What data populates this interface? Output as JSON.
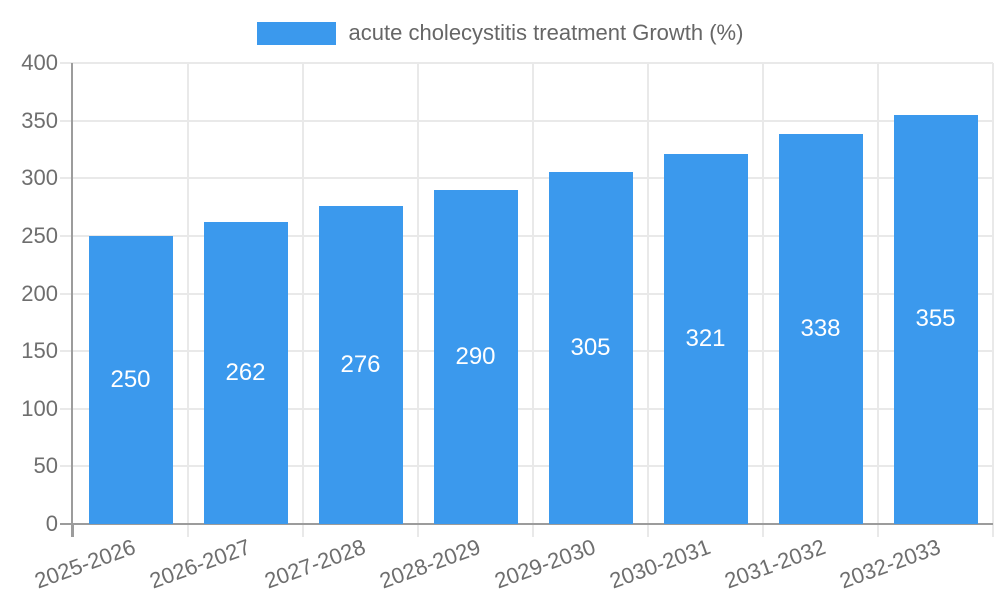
{
  "legend": {
    "label": "acute cholecystitis treatment Growth (%)"
  },
  "chart_data": {
    "type": "bar",
    "title": "",
    "series_name": "acute cholecystitis treatment Growth (%)",
    "categories": [
      "2025-2026",
      "2026-2027",
      "2027-2028",
      "2028-2029",
      "2029-2030",
      "2030-2031",
      "2031-2032",
      "2032-2033"
    ],
    "values": [
      250,
      262,
      276,
      290,
      305,
      321,
      338,
      355
    ],
    "value_labels": [
      "250",
      "262",
      "276",
      "290",
      "305",
      "321",
      "338",
      "355"
    ],
    "xlabel": "",
    "ylabel": "",
    "ylim": [
      0,
      400
    ],
    "y_ticks": [
      "0",
      "50",
      "100",
      "150",
      "200",
      "250",
      "300",
      "350",
      "400"
    ],
    "grid": true,
    "legend_position": "top",
    "colors": {
      "bar": "#3b99ed",
      "value_label": "#ffffff",
      "axis": "#9c9c9c",
      "grid": "#e9e9e9",
      "tick_text": "#6e6e6e",
      "legend_text": "#666666",
      "background": "#ffffff"
    }
  }
}
